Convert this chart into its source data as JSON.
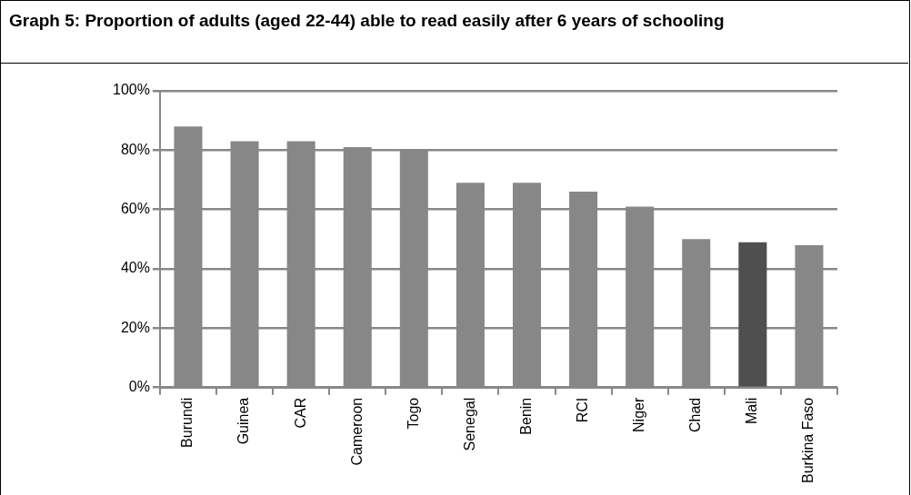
{
  "chart_data": {
    "type": "bar",
    "title": "Graph 5: Proportion of adults (aged 22-44) able to read easily after 6 years of schooling",
    "categories": [
      "Burundi",
      "Guinea",
      "CAR",
      "Cameroon",
      "Togo",
      "Senegal",
      "Benin",
      "RCI",
      "Niger",
      "Chad",
      "Mali",
      "Burkina Faso"
    ],
    "values": [
      88,
      83,
      83,
      81,
      80,
      69,
      69,
      66,
      61,
      50,
      49,
      48
    ],
    "colors": [
      "#878787",
      "#878787",
      "#878787",
      "#878787",
      "#878787",
      "#878787",
      "#878787",
      "#878787",
      "#878787",
      "#878787",
      "#4f4f4f",
      "#878787"
    ],
    "ylim": [
      0,
      100
    ],
    "yticks": [
      {
        "value": 0,
        "label": "0%"
      },
      {
        "value": 20,
        "label": "20%"
      },
      {
        "value": 40,
        "label": "40%"
      },
      {
        "value": 60,
        "label": "60%"
      },
      {
        "value": 80,
        "label": "80%"
      },
      {
        "value": 100,
        "label": "100%"
      }
    ],
    "grid": "y"
  }
}
